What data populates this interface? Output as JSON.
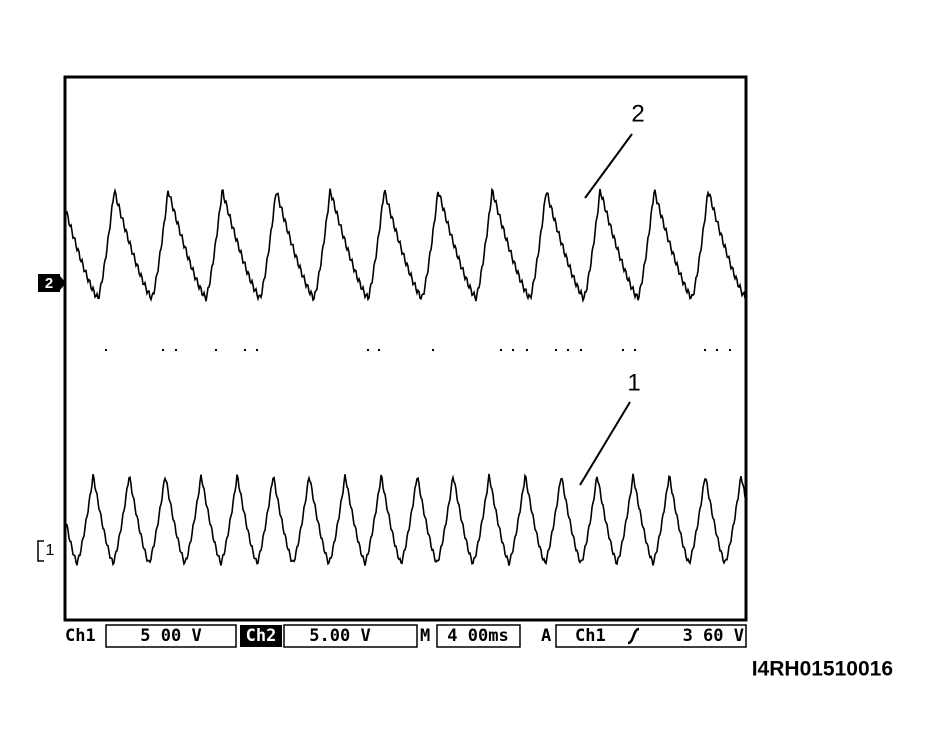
{
  "screen": {
    "trace_labels": [
      "2",
      "1"
    ],
    "channel_markers": [
      "2",
      "1"
    ]
  },
  "status_bar": {
    "ch1_label": "Ch1",
    "ch1_scale": "5 00 V",
    "ch2_label": "Ch2",
    "ch2_scale": "5.00 V",
    "time_label": "M",
    "time_scale": "4 00ms",
    "trigger_label": "A",
    "trigger_source": "Ch1",
    "trigger_level": "3 60 V"
  },
  "figure_id": "I4RH01510016"
}
